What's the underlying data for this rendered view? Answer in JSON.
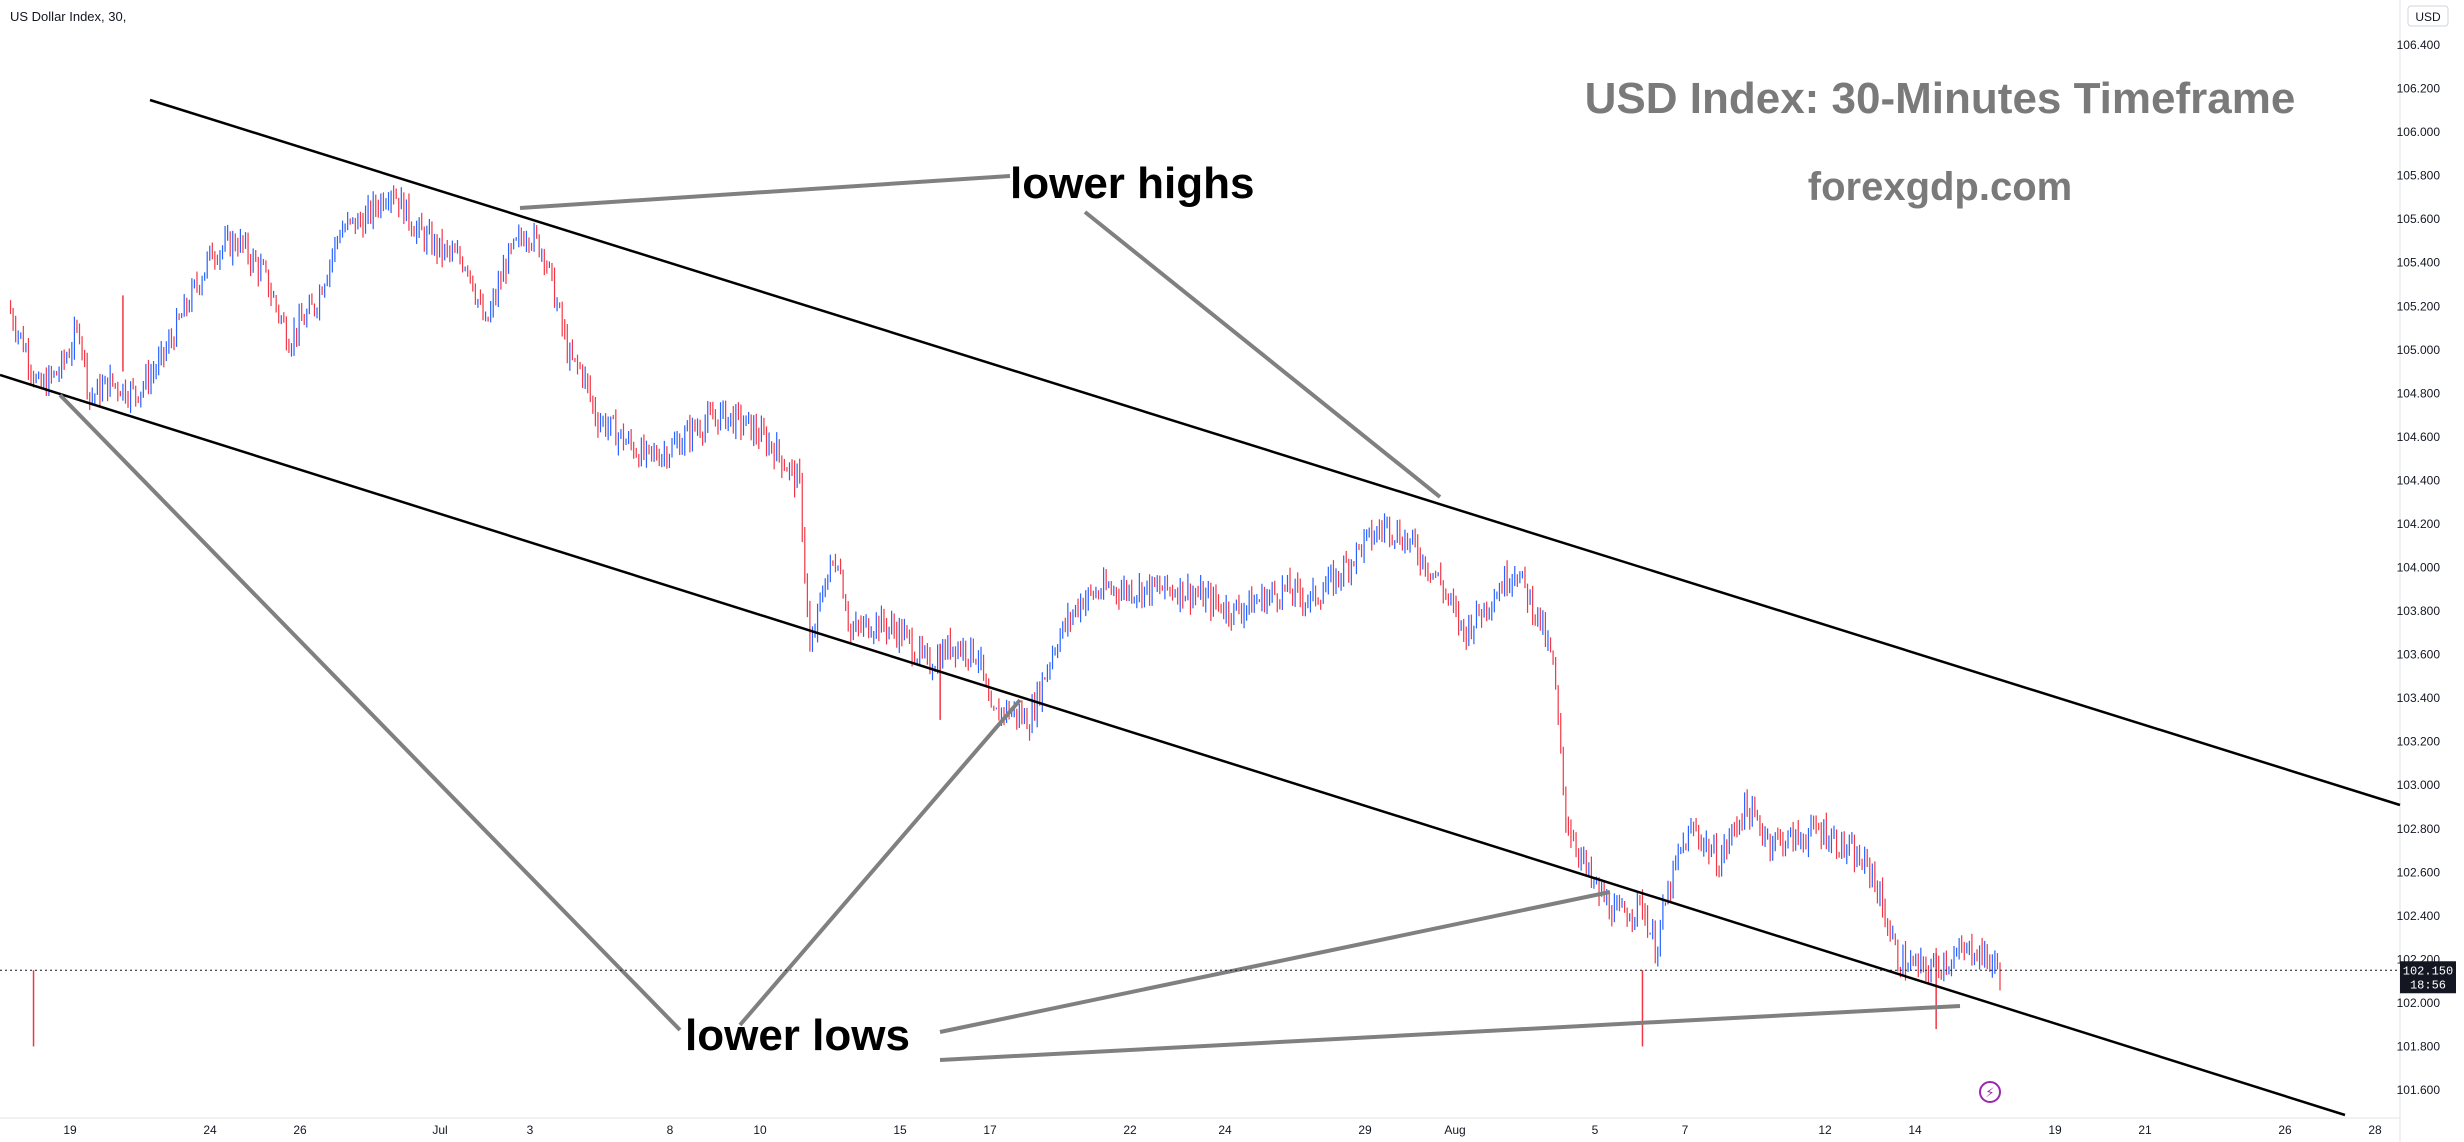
{
  "header": {
    "symbol": "US Dollar Index, 30,"
  },
  "watermark": {
    "title": "USD Index: 30-Minutes Timeframe",
    "site": "forexgdp.com"
  },
  "annotations": {
    "lower_highs": "lower highs",
    "lower_lows": "lower lows"
  },
  "axis": {
    "currency": "USD",
    "price_ticks": [
      "106.400",
      "106.200",
      "106.000",
      "105.800",
      "105.600",
      "105.400",
      "105.200",
      "105.000",
      "104.800",
      "104.600",
      "104.400",
      "104.200",
      "104.000",
      "103.800",
      "103.600",
      "103.400",
      "103.200",
      "103.000",
      "102.800",
      "102.600",
      "102.400",
      "102.200",
      "102.000",
      "101.800",
      "101.600"
    ],
    "date_ticks": [
      "19",
      "24",
      "26",
      "Jul",
      "3",
      "8",
      "10",
      "15",
      "17",
      "22",
      "24",
      "29",
      "Aug",
      "5",
      "7",
      "12",
      "14",
      "19",
      "21",
      "26",
      "28"
    ]
  },
  "last_price": {
    "value": "102.150",
    "countdown": "18:56"
  },
  "colors": {
    "up": "#2962ff",
    "down": "#f23645",
    "channel": "#000000",
    "pointer": "#808080",
    "last_price_bg": "#131722"
  },
  "chart_data": {
    "type": "line",
    "title": "USD Index: 30-Minutes Timeframe",
    "xlabel": "",
    "ylabel": "",
    "x_units": "trading session index (0 = Jun 19, 45 = Aug 15)",
    "ylim": [
      101.5,
      106.5
    ],
    "price_path": [
      [
        0,
        105.2
      ],
      [
        0.7,
        105.0
      ],
      [
        1.2,
        104.82
      ],
      [
        2.0,
        104.9
      ],
      [
        2.8,
        105.1
      ],
      [
        3.2,
        104.78
      ],
      [
        4.0,
        104.85
      ],
      [
        5.0,
        104.8
      ],
      [
        6.0,
        104.95
      ],
      [
        7.0,
        105.2
      ],
      [
        8.0,
        105.45
      ],
      [
        9.0,
        105.5
      ],
      [
        10.0,
        105.35
      ],
      [
        11.0,
        105.05
      ],
      [
        12.0,
        105.2
      ],
      [
        13.0,
        105.55
      ],
      [
        14.0,
        105.6
      ],
      [
        15.0,
        105.75
      ],
      [
        16.0,
        105.55
      ],
      [
        17.0,
        105.45
      ],
      [
        18.0,
        105.4
      ],
      [
        18.7,
        105.1
      ],
      [
        19.5,
        105.4
      ],
      [
        20.3,
        105.55
      ],
      [
        21.0,
        105.45
      ],
      [
        21.5,
        105.2
      ],
      [
        22.0,
        104.95
      ],
      [
        22.5,
        104.9
      ],
      [
        23.0,
        104.7
      ],
      [
        24.0,
        104.6
      ],
      [
        25.0,
        104.5
      ],
      [
        26.0,
        104.55
      ],
      [
        27.0,
        104.65
      ],
      [
        28.0,
        104.7
      ],
      [
        29.0,
        104.65
      ],
      [
        30.0,
        104.55
      ],
      [
        31.0,
        104.38
      ],
      [
        31.4,
        103.6
      ],
      [
        32.0,
        103.95
      ],
      [
        32.5,
        104.05
      ],
      [
        33.0,
        103.7
      ],
      [
        34.0,
        103.75
      ],
      [
        35.0,
        103.7
      ],
      [
        36.0,
        103.55
      ],
      [
        37.0,
        103.65
      ],
      [
        38.0,
        103.6
      ],
      [
        38.5,
        103.3
      ],
      [
        39.0,
        103.35
      ],
      [
        40.0,
        103.3
      ],
      [
        41.0,
        103.65
      ],
      [
        42.0,
        103.85
      ],
      [
        43.0,
        103.9
      ],
      [
        44.0,
        103.9
      ],
      [
        45.0,
        103.9
      ],
      [
        46.0,
        103.9
      ],
      [
        47.0,
        103.85
      ],
      [
        48.0,
        103.8
      ],
      [
        49.0,
        103.85
      ],
      [
        50.0,
        103.9
      ],
      [
        51.0,
        103.85
      ],
      [
        52.0,
        103.95
      ],
      [
        53.0,
        104.1
      ],
      [
        54.0,
        104.2
      ],
      [
        55.0,
        104.1
      ],
      [
        56.0,
        103.95
      ],
      [
        57.0,
        103.7
      ],
      [
        58.0,
        103.85
      ],
      [
        59.0,
        104.0
      ],
      [
        60.0,
        103.75
      ],
      [
        60.5,
        103.55
      ],
      [
        61.0,
        102.85
      ],
      [
        61.5,
        102.7
      ],
      [
        62.0,
        102.55
      ],
      [
        63.0,
        102.4
      ],
      [
        64.0,
        102.45
      ],
      [
        64.5,
        102.25
      ],
      [
        65.0,
        102.5
      ],
      [
        65.5,
        102.7
      ],
      [
        66.0,
        102.8
      ],
      [
        67.0,
        102.65
      ],
      [
        68.0,
        102.9
      ],
      [
        69.0,
        102.75
      ],
      [
        70.0,
        102.75
      ],
      [
        71.0,
        102.8
      ],
      [
        72.0,
        102.7
      ],
      [
        73.0,
        102.6
      ],
      [
        74.0,
        102.2
      ],
      [
        75.0,
        102.15
      ],
      [
        76.0,
        102.2
      ],
      [
        77.0,
        102.25
      ],
      [
        78.0,
        102.15
      ]
    ],
    "swing_lows": [
      {
        "x": 1.0,
        "y": 101.8
      },
      {
        "x": 4.5,
        "y": 104.9
      },
      {
        "x": 36.5,
        "y": 103.3
      },
      {
        "x": 64.0,
        "y": 101.8
      },
      {
        "x": 75.5,
        "y": 101.88
      }
    ],
    "sessions_per_label": 1,
    "channel": {
      "upper": [
        [
          0,
          106.15
        ],
        [
          90,
          102.85
        ]
      ],
      "lower": [
        [
          0,
          104.85
        ],
        [
          90,
          101.55
        ]
      ]
    },
    "last_price": 102.15
  }
}
